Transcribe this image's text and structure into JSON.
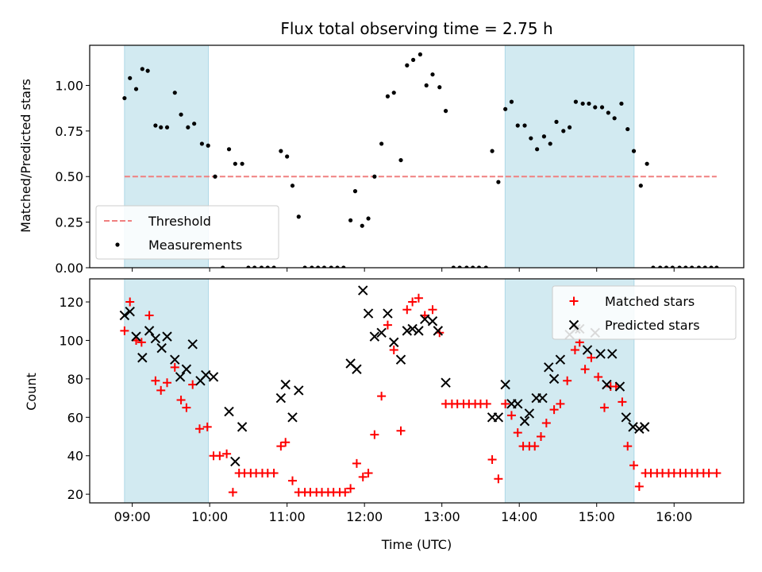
{
  "figure": {
    "title": "Flux total observing time = 2.75 h",
    "xlabel": "Time (UTC)",
    "x_tick_labels": [
      "09:00",
      "10:00",
      "11:00",
      "12:00",
      "13:00",
      "14:00",
      "15:00",
      "16:00"
    ],
    "x_range_hours": [
      8.45,
      16.9
    ],
    "shaded_intervals_hours": [
      [
        8.9,
        9.983
      ],
      [
        13.817,
        15.483
      ]
    ],
    "shade_color": "#add8e6",
    "x_tick_hours": [
      9,
      10,
      11,
      12,
      13,
      14,
      15,
      16
    ]
  },
  "chart_data": [
    {
      "type": "scatter",
      "ylabel": "Matched/Predicted stars",
      "ylim": [
        0,
        1.22
      ],
      "y_tick_labels": [
        "0.00",
        "0.25",
        "0.50",
        "0.75",
        "1.00"
      ],
      "y_ticks": [
        0,
        0.25,
        0.5,
        0.75,
        1.0
      ],
      "legend": {
        "placement": "lower-left",
        "entries": [
          "Threshold",
          "Measurements"
        ]
      },
      "threshold": {
        "name": "Threshold",
        "value": 0.5,
        "x_range_hours": [
          8.9,
          16.55
        ],
        "color": "#f08080",
        "style": "dashed"
      },
      "series": [
        {
          "name": "Measurements",
          "color": "#000000",
          "marker": "dot",
          "x_hours": [
            8.9,
            8.97,
            9.05,
            9.13,
            9.2,
            9.3,
            9.37,
            9.45,
            9.55,
            9.63,
            9.72,
            9.8,
            9.9,
            9.98,
            10.07,
            10.17,
            10.25,
            10.33,
            10.42,
            10.5,
            10.58,
            10.67,
            10.75,
            10.83,
            10.92,
            11.0,
            11.07,
            11.15,
            11.23,
            11.32,
            11.4,
            11.48,
            11.57,
            11.65,
            11.73,
            11.82,
            11.88,
            11.97,
            12.05,
            12.13,
            12.22,
            12.3,
            12.38,
            12.47,
            12.55,
            12.63,
            12.72,
            12.8,
            12.88,
            12.97,
            13.05,
            13.15,
            13.23,
            13.32,
            13.4,
            13.48,
            13.57,
            13.65,
            13.73,
            13.82,
            13.9,
            13.98,
            14.07,
            14.15,
            14.23,
            14.32,
            14.4,
            14.48,
            14.57,
            14.65,
            14.73,
            14.82,
            14.9,
            14.98,
            15.07,
            15.15,
            15.23,
            15.32,
            15.4,
            15.48,
            15.57,
            15.65,
            15.73,
            15.82,
            15.9,
            15.98,
            16.07,
            16.15,
            16.23,
            16.32,
            16.4,
            16.48,
            16.55
          ],
          "y": [
            0.93,
            1.04,
            0.98,
            1.09,
            1.08,
            0.78,
            0.77,
            0.77,
            0.96,
            0.84,
            0.77,
            0.79,
            0.68,
            0.67,
            0.5,
            0.0,
            0.65,
            0.57,
            0.57,
            0.0,
            0.0,
            0.0,
            0.0,
            0.0,
            0.64,
            0.61,
            0.45,
            0.28,
            0.0,
            0.0,
            0.0,
            0.0,
            0.0,
            0.0,
            0.0,
            0.26,
            0.42,
            0.23,
            0.27,
            0.5,
            0.68,
            0.94,
            0.96,
            0.59,
            1.11,
            1.14,
            1.17,
            1.0,
            1.06,
            0.99,
            0.86,
            0.0,
            0.0,
            0.0,
            0.0,
            0.0,
            0.0,
            0.64,
            0.47,
            0.87,
            0.91,
            0.78,
            0.78,
            0.71,
            0.65,
            0.72,
            0.68,
            0.8,
            0.75,
            0.77,
            0.91,
            0.9,
            0.9,
            0.88,
            0.88,
            0.85,
            0.82,
            0.9,
            0.76,
            0.64,
            0.45,
            0.57,
            0.0,
            0.0,
            0.0,
            0.0,
            0.0,
            0.0,
            0.0,
            0.0,
            0.0,
            0.0,
            0.0
          ]
        }
      ]
    },
    {
      "type": "scatter",
      "ylabel": "Count",
      "ylim": [
        15.5,
        132
      ],
      "y_tick_labels": [
        "20",
        "40",
        "60",
        "80",
        "100",
        "120"
      ],
      "y_ticks": [
        20,
        40,
        60,
        80,
        100,
        120
      ],
      "legend": {
        "placement": "top-right",
        "entries": [
          "Matched stars",
          "Predicted stars"
        ]
      },
      "series": [
        {
          "name": "Matched stars",
          "color": "#ff0000",
          "marker": "plus",
          "points": [
            [
              8.9,
              105
            ],
            [
              8.97,
              120
            ],
            [
              9.05,
              100
            ],
            [
              9.12,
              99
            ],
            [
              9.22,
              113
            ],
            [
              9.3,
              79
            ],
            [
              9.37,
              74
            ],
            [
              9.45,
              78
            ],
            [
              9.55,
              86
            ],
            [
              9.63,
              69
            ],
            [
              9.7,
              65
            ],
            [
              9.78,
              77
            ],
            [
              9.87,
              54
            ],
            [
              9.97,
              55
            ],
            [
              10.05,
              40
            ],
            [
              10.13,
              40
            ],
            [
              10.22,
              41
            ],
            [
              10.3,
              21
            ],
            [
              10.38,
              31
            ],
            [
              10.45,
              31
            ],
            [
              10.53,
              31
            ],
            [
              10.6,
              31
            ],
            [
              10.68,
              31
            ],
            [
              10.75,
              31
            ],
            [
              10.83,
              31
            ],
            [
              10.92,
              45
            ],
            [
              10.98,
              47
            ],
            [
              11.07,
              27
            ],
            [
              11.15,
              21
            ],
            [
              11.23,
              21
            ],
            [
              11.3,
              21
            ],
            [
              11.38,
              21
            ],
            [
              11.45,
              21
            ],
            [
              11.53,
              21
            ],
            [
              11.6,
              21
            ],
            [
              11.68,
              21
            ],
            [
              11.75,
              21
            ],
            [
              11.82,
              23
            ],
            [
              11.9,
              36
            ],
            [
              11.98,
              29
            ],
            [
              12.05,
              31
            ],
            [
              12.13,
              51
            ],
            [
              12.22,
              71
            ],
            [
              12.3,
              108
            ],
            [
              12.38,
              95
            ],
            [
              12.47,
              53
            ],
            [
              12.55,
              116
            ],
            [
              12.62,
              120
            ],
            [
              12.7,
              122
            ],
            [
              12.78,
              113
            ],
            [
              12.88,
              116
            ],
            [
              12.97,
              104
            ],
            [
              13.05,
              67
            ],
            [
              13.13,
              67
            ],
            [
              13.2,
              67
            ],
            [
              13.28,
              67
            ],
            [
              13.35,
              67
            ],
            [
              13.43,
              67
            ],
            [
              13.5,
              67
            ],
            [
              13.58,
              67
            ],
            [
              13.65,
              38
            ],
            [
              13.73,
              28
            ],
            [
              13.82,
              67
            ],
            [
              13.9,
              61
            ],
            [
              13.98,
              52
            ],
            [
              14.05,
              45
            ],
            [
              14.13,
              45
            ],
            [
              14.2,
              45
            ],
            [
              14.28,
              50
            ],
            [
              14.35,
              57
            ],
            [
              14.45,
              64
            ],
            [
              14.53,
              67
            ],
            [
              14.62,
              79
            ],
            [
              14.72,
              95
            ],
            [
              14.78,
              99
            ],
            [
              14.85,
              85
            ],
            [
              14.93,
              91
            ],
            [
              15.02,
              81
            ],
            [
              15.1,
              65
            ],
            [
              15.18,
              76
            ],
            [
              15.25,
              76
            ],
            [
              15.33,
              68
            ],
            [
              15.4,
              45
            ],
            [
              15.48,
              35
            ],
            [
              15.55,
              24
            ],
            [
              15.63,
              31
            ],
            [
              15.7,
              31
            ],
            [
              15.78,
              31
            ],
            [
              15.85,
              31
            ],
            [
              15.93,
              31
            ],
            [
              16.0,
              31
            ],
            [
              16.08,
              31
            ],
            [
              16.15,
              31
            ],
            [
              16.23,
              31
            ],
            [
              16.3,
              31
            ],
            [
              16.38,
              31
            ],
            [
              16.45,
              31
            ],
            [
              16.55,
              31
            ]
          ]
        },
        {
          "name": "Predicted stars",
          "color": "#000000",
          "marker": "x",
          "points": [
            [
              8.9,
              113
            ],
            [
              8.97,
              115
            ],
            [
              9.05,
              102
            ],
            [
              9.13,
              91
            ],
            [
              9.22,
              105
            ],
            [
              9.3,
              101
            ],
            [
              9.38,
              96
            ],
            [
              9.45,
              102
            ],
            [
              9.55,
              90
            ],
            [
              9.62,
              81
            ],
            [
              9.7,
              85
            ],
            [
              9.78,
              98
            ],
            [
              9.88,
              79
            ],
            [
              9.95,
              82
            ],
            [
              10.05,
              81
            ],
            [
              10.25,
              63
            ],
            [
              10.33,
              37
            ],
            [
              10.42,
              55
            ],
            [
              10.92,
              70
            ],
            [
              10.98,
              77
            ],
            [
              11.07,
              60
            ],
            [
              11.15,
              74
            ],
            [
              11.82,
              88
            ],
            [
              11.9,
              85
            ],
            [
              11.98,
              126
            ],
            [
              12.05,
              114
            ],
            [
              12.13,
              102
            ],
            [
              12.22,
              104
            ],
            [
              12.3,
              114
            ],
            [
              12.38,
              99
            ],
            [
              12.47,
              90
            ],
            [
              12.55,
              105
            ],
            [
              12.62,
              106
            ],
            [
              12.7,
              105
            ],
            [
              12.78,
              111
            ],
            [
              12.88,
              110
            ],
            [
              12.95,
              105
            ],
            [
              13.05,
              78
            ],
            [
              13.65,
              60
            ],
            [
              13.73,
              60
            ],
            [
              13.82,
              77
            ],
            [
              13.9,
              67
            ],
            [
              13.98,
              67
            ],
            [
              14.07,
              58
            ],
            [
              14.13,
              62
            ],
            [
              14.22,
              70
            ],
            [
              14.3,
              70
            ],
            [
              14.38,
              86
            ],
            [
              14.45,
              80
            ],
            [
              14.53,
              90
            ],
            [
              14.65,
              103
            ],
            [
              14.73,
              106
            ],
            [
              14.78,
              106
            ],
            [
              14.88,
              95
            ],
            [
              14.98,
              104
            ],
            [
              15.05,
              93
            ],
            [
              15.13,
              77
            ],
            [
              15.2,
              93
            ],
            [
              15.3,
              76
            ],
            [
              15.38,
              60
            ],
            [
              15.47,
              55
            ],
            [
              15.55,
              54
            ],
            [
              15.62,
              55
            ]
          ]
        }
      ]
    }
  ]
}
